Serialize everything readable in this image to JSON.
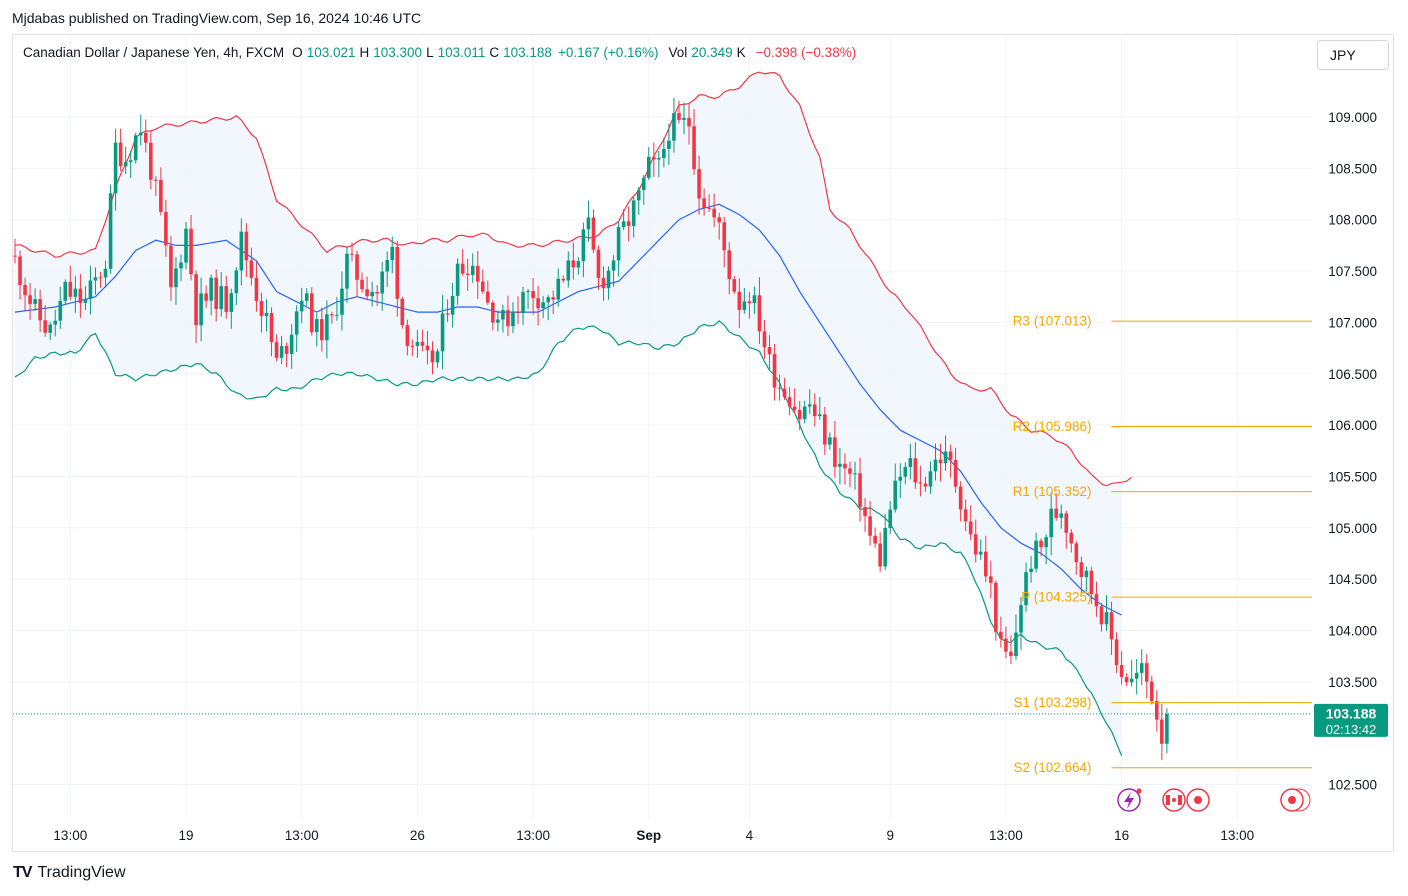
{
  "header": {
    "publisher_line": "Mjdabas published on TradingView.com, Sep 16, 2024 10:46 UTC"
  },
  "legend": {
    "symbol": "Canadian Dollar / Japanese Yen, 4h, FXCM",
    "open_label": "O",
    "open": "103.021",
    "high_label": "H",
    "high": "103.300",
    "low_label": "L",
    "low": "103.011",
    "close_label": "C",
    "close": "103.188",
    "change": "+0.167 (+0.16%)",
    "vol_label": "Vol",
    "vol_value": "20.349",
    "vol_unit": "K",
    "vol_change": "−0.398 (−0.38%)"
  },
  "currency_button": "JPY",
  "footer": {
    "brand": "TradingView",
    "brand_mark": "TV"
  },
  "colors": {
    "up": "#089981",
    "down": "#f23645",
    "basis": "#2962ff",
    "upper": "#f23645",
    "lower": "#089981",
    "pivot": "#f7a600",
    "grid": "#f0f3fa",
    "band_fill": "#eef6fd"
  },
  "chart_data": {
    "type": "candlestick",
    "title": "Canadian Dollar / Japanese Yen, 4h, FXCM",
    "ylim": [
      102.1,
      109.7
    ],
    "y_ticks": [
      "109.000",
      "108.500",
      "108.000",
      "107.500",
      "107.000",
      "106.500",
      "106.000",
      "105.500",
      "105.000",
      "104.500",
      "104.000",
      "103.500",
      "102.500"
    ],
    "x_ticks": [
      {
        "label": "13:00",
        "bar": 11
      },
      {
        "label": "19",
        "bar": 34
      },
      {
        "label": "13:00",
        "bar": 57
      },
      {
        "label": "26",
        "bar": 80
      },
      {
        "label": "13:00",
        "bar": 103
      },
      {
        "label": "Sep",
        "bar": 126,
        "bold": true
      },
      {
        "label": "4",
        "bar": 146
      },
      {
        "label": "9",
        "bar": 174
      },
      {
        "label": "13:00",
        "bar": 197
      },
      {
        "label": "16",
        "bar": 220
      },
      {
        "label": "13:00",
        "bar": 243
      }
    ],
    "last_price": {
      "price": "103.188",
      "value": 103.188,
      "countdown": "02:13:42"
    },
    "pivots": [
      {
        "label": "R3",
        "price": "107.013",
        "value": 107.013
      },
      {
        "label": "R2",
        "price": "105.986",
        "value": 105.986
      },
      {
        "label": "R1",
        "price": "105.352",
        "value": 105.352
      },
      {
        "label": "P",
        "price": "104.325",
        "value": 104.325
      },
      {
        "label": "S1",
        "price": "103.298",
        "value": 103.298
      },
      {
        "label": "S2",
        "price": "102.664",
        "value": 102.664
      }
    ],
    "pivot_start_bar": 217,
    "waypoints": [
      [
        0,
        107.6
      ],
      [
        4,
        107.1
      ],
      [
        7,
        106.9
      ],
      [
        10,
        107.3
      ],
      [
        14,
        107.2
      ],
      [
        18,
        107.6
      ],
      [
        20,
        108.7
      ],
      [
        22,
        108.6
      ],
      [
        25,
        108.9
      ],
      [
        27,
        108.5
      ],
      [
        29,
        108.0
      ],
      [
        31,
        107.3
      ],
      [
        34,
        107.9
      ],
      [
        36,
        107.1
      ],
      [
        39,
        107.3
      ],
      [
        42,
        107.2
      ],
      [
        45,
        107.8
      ],
      [
        48,
        107.3
      ],
      [
        50,
        107.0
      ],
      [
        52,
        106.6
      ],
      [
        54,
        106.8
      ],
      [
        57,
        107.3
      ],
      [
        60,
        106.9
      ],
      [
        63,
        107.0
      ],
      [
        66,
        107.6
      ],
      [
        69,
        107.4
      ],
      [
        72,
        107.3
      ],
      [
        75,
        107.7
      ],
      [
        77,
        107.0
      ],
      [
        80,
        106.7
      ],
      [
        82,
        106.6
      ],
      [
        84,
        106.7
      ],
      [
        86,
        107.2
      ],
      [
        88,
        107.5
      ],
      [
        90,
        107.6
      ],
      [
        92,
        107.5
      ],
      [
        94,
        107.2
      ],
      [
        97,
        107.0
      ],
      [
        100,
        107.2
      ],
      [
        103,
        107.3
      ],
      [
        106,
        107.2
      ],
      [
        109,
        107.4
      ],
      [
        112,
        107.7
      ],
      [
        114,
        107.9
      ],
      [
        116,
        107.4
      ],
      [
        118,
        107.5
      ],
      [
        120,
        107.8
      ],
      [
        122,
        108.0
      ],
      [
        124,
        108.2
      ],
      [
        126,
        108.5
      ],
      [
        128,
        108.5
      ],
      [
        130,
        108.9
      ],
      [
        132,
        108.9
      ],
      [
        134,
        108.95
      ],
      [
        136,
        108.3
      ],
      [
        138,
        108.1
      ],
      [
        140,
        107.9
      ],
      [
        142,
        107.5
      ],
      [
        144,
        107.2
      ],
      [
        146,
        107.3
      ],
      [
        148,
        107.0
      ],
      [
        150,
        106.6
      ],
      [
        152,
        106.4
      ],
      [
        154,
        106.3
      ],
      [
        156,
        106.1
      ],
      [
        158,
        106.2
      ],
      [
        160,
        106.0
      ],
      [
        162,
        105.8
      ],
      [
        164,
        105.6
      ],
      [
        166,
        105.5
      ],
      [
        168,
        105.3
      ],
      [
        170,
        104.9
      ],
      [
        172,
        104.7
      ],
      [
        174,
        105.2
      ],
      [
        176,
        105.5
      ],
      [
        178,
        105.6
      ],
      [
        180,
        105.4
      ],
      [
        182,
        105.6
      ],
      [
        184,
        105.7
      ],
      [
        186,
        105.6
      ],
      [
        188,
        105.3
      ],
      [
        190,
        104.9
      ],
      [
        192,
        104.7
      ],
      [
        194,
        104.4
      ],
      [
        196,
        103.8
      ],
      [
        198,
        103.7
      ],
      [
        200,
        104.3
      ],
      [
        202,
        104.7
      ],
      [
        204,
        104.8
      ],
      [
        206,
        105.1
      ],
      [
        208,
        105.2
      ],
      [
        210,
        104.9
      ],
      [
        212,
        104.6
      ],
      [
        214,
        104.4
      ],
      [
        216,
        104.2
      ],
      [
        218,
        103.9
      ],
      [
        220,
        103.6
      ],
      [
        222,
        103.5
      ],
      [
        224,
        103.6
      ],
      [
        226,
        103.4
      ],
      [
        228,
        103.0
      ],
      [
        229,
        103.188
      ]
    ],
    "upper_band": [
      [
        0,
        107.75
      ],
      [
        8,
        107.65
      ],
      [
        16,
        107.7
      ],
      [
        20,
        108.3
      ],
      [
        24,
        108.8
      ],
      [
        28,
        108.9
      ],
      [
        36,
        108.95
      ],
      [
        44,
        109.0
      ],
      [
        48,
        108.8
      ],
      [
        52,
        108.2
      ],
      [
        56,
        108.0
      ],
      [
        60,
        107.8
      ],
      [
        62,
        107.7
      ],
      [
        66,
        107.75
      ],
      [
        70,
        107.8
      ],
      [
        74,
        107.8
      ],
      [
        78,
        107.75
      ],
      [
        82,
        107.8
      ],
      [
        86,
        107.8
      ],
      [
        90,
        107.85
      ],
      [
        94,
        107.85
      ],
      [
        98,
        107.75
      ],
      [
        104,
        107.75
      ],
      [
        110,
        107.8
      ],
      [
        116,
        107.85
      ],
      [
        120,
        108.0
      ],
      [
        124,
        108.3
      ],
      [
        128,
        108.7
      ],
      [
        132,
        109.1
      ],
      [
        136,
        109.2
      ],
      [
        140,
        109.2
      ],
      [
        144,
        109.3
      ],
      [
        148,
        109.45
      ],
      [
        152,
        109.4
      ],
      [
        156,
        109.1
      ],
      [
        160,
        108.6
      ],
      [
        162,
        108.1
      ],
      [
        166,
        107.9
      ],
      [
        170,
        107.6
      ],
      [
        174,
        107.3
      ],
      [
        178,
        107.1
      ],
      [
        182,
        106.8
      ],
      [
        186,
        106.5
      ],
      [
        190,
        106.35
      ],
      [
        194,
        106.35
      ],
      [
        198,
        106.1
      ],
      [
        202,
        105.95
      ],
      [
        206,
        105.9
      ],
      [
        210,
        105.75
      ],
      [
        214,
        105.5
      ],
      [
        217,
        105.42
      ],
      [
        219,
        105.42
      ],
      [
        222,
        105.5
      ]
    ],
    "basis_line": [
      [
        0,
        107.1
      ],
      [
        8,
        107.15
      ],
      [
        16,
        107.25
      ],
      [
        20,
        107.45
      ],
      [
        24,
        107.7
      ],
      [
        28,
        107.8
      ],
      [
        32,
        107.75
      ],
      [
        36,
        107.75
      ],
      [
        42,
        107.8
      ],
      [
        48,
        107.6
      ],
      [
        52,
        107.3
      ],
      [
        56,
        107.2
      ],
      [
        60,
        107.1
      ],
      [
        64,
        107.2
      ],
      [
        68,
        107.25
      ],
      [
        72,
        107.2
      ],
      [
        76,
        107.15
      ],
      [
        80,
        107.1
      ],
      [
        84,
        107.1
      ],
      [
        88,
        107.15
      ],
      [
        92,
        107.15
      ],
      [
        96,
        107.1
      ],
      [
        100,
        107.1
      ],
      [
        104,
        107.1
      ],
      [
        108,
        107.2
      ],
      [
        112,
        107.3
      ],
      [
        116,
        107.35
      ],
      [
        120,
        107.4
      ],
      [
        124,
        107.6
      ],
      [
        128,
        107.8
      ],
      [
        132,
        108.0
      ],
      [
        136,
        108.1
      ],
      [
        140,
        108.15
      ],
      [
        144,
        108.05
      ],
      [
        148,
        107.9
      ],
      [
        152,
        107.65
      ],
      [
        156,
        107.3
      ],
      [
        160,
        107.0
      ],
      [
        164,
        106.7
      ],
      [
        168,
        106.4
      ],
      [
        172,
        106.15
      ],
      [
        176,
        105.95
      ],
      [
        180,
        105.85
      ],
      [
        184,
        105.75
      ],
      [
        188,
        105.55
      ],
      [
        192,
        105.25
      ],
      [
        196,
        105.0
      ],
      [
        200,
        104.85
      ],
      [
        204,
        104.75
      ],
      [
        208,
        104.6
      ],
      [
        212,
        104.4
      ],
      [
        216,
        104.25
      ],
      [
        220,
        104.15
      ]
    ],
    "lower_band": [
      [
        0,
        106.45
      ],
      [
        4,
        106.65
      ],
      [
        8,
        106.7
      ],
      [
        12,
        106.7
      ],
      [
        16,
        106.9
      ],
      [
        18,
        106.7
      ],
      [
        20,
        106.5
      ],
      [
        24,
        106.45
      ],
      [
        28,
        106.5
      ],
      [
        32,
        106.55
      ],
      [
        36,
        106.6
      ],
      [
        40,
        106.5
      ],
      [
        44,
        106.3
      ],
      [
        48,
        106.25
      ],
      [
        52,
        106.35
      ],
      [
        56,
        106.35
      ],
      [
        60,
        106.45
      ],
      [
        64,
        106.5
      ],
      [
        68,
        106.5
      ],
      [
        72,
        106.45
      ],
      [
        76,
        106.4
      ],
      [
        80,
        106.4
      ],
      [
        84,
        106.45
      ],
      [
        88,
        106.45
      ],
      [
        92,
        106.45
      ],
      [
        96,
        106.45
      ],
      [
        100,
        106.45
      ],
      [
        104,
        106.5
      ],
      [
        108,
        106.8
      ],
      [
        112,
        106.95
      ],
      [
        116,
        106.95
      ],
      [
        120,
        106.8
      ],
      [
        124,
        106.8
      ],
      [
        128,
        106.75
      ],
      [
        132,
        106.8
      ],
      [
        136,
        106.95
      ],
      [
        140,
        107.0
      ],
      [
        144,
        106.85
      ],
      [
        148,
        106.7
      ],
      [
        152,
        106.4
      ],
      [
        156,
        106.0
      ],
      [
        160,
        105.6
      ],
      [
        164,
        105.35
      ],
      [
        168,
        105.2
      ],
      [
        172,
        105.15
      ],
      [
        176,
        104.9
      ],
      [
        180,
        104.8
      ],
      [
        184,
        104.85
      ],
      [
        188,
        104.75
      ],
      [
        190,
        104.6
      ],
      [
        192,
        104.35
      ],
      [
        194,
        104.1
      ],
      [
        196,
        103.9
      ],
      [
        198,
        103.9
      ],
      [
        200,
        103.95
      ],
      [
        204,
        103.85
      ],
      [
        208,
        103.8
      ],
      [
        212,
        103.55
      ],
      [
        216,
        103.2
      ],
      [
        220,
        102.8
      ]
    ]
  }
}
